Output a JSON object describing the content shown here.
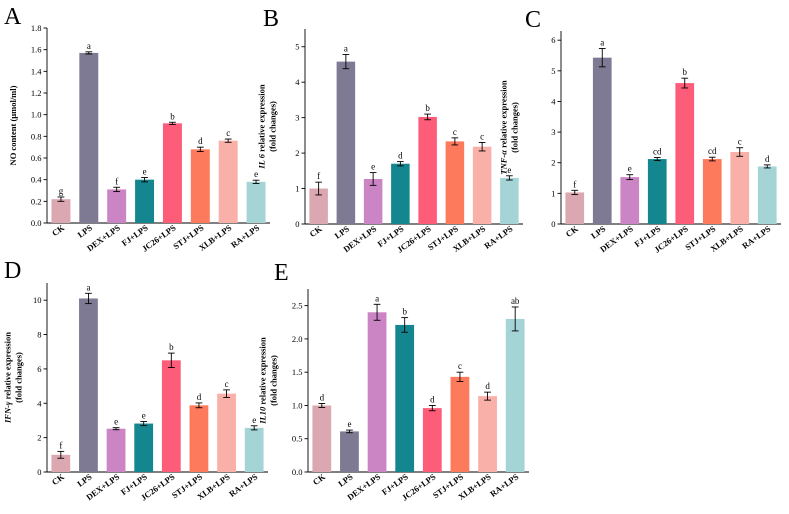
{
  "colors": [
    "#dba8b1",
    "#7e7a93",
    "#cc85c4",
    "#13868f",
    "#fd5d79",
    "#fe7a5d",
    "#f9b0a8",
    "#a5d4d7"
  ],
  "chart_data": [
    {
      "id": "A",
      "type": "bar",
      "letter": "A",
      "categories": [
        "CK",
        "LPS",
        "DEX+LPS",
        "FJ+LPS",
        "JC26+LPS",
        "STJ+LPS",
        "XLB+LPS",
        "RA+LPS"
      ],
      "values": [
        0.22,
        1.57,
        0.31,
        0.4,
        0.92,
        0.68,
        0.76,
        0.38
      ],
      "errors": [
        0.02,
        0.01,
        0.02,
        0.02,
        0.01,
        0.02,
        0.015,
        0.015
      ],
      "sig": [
        "g",
        "a",
        "f",
        "e",
        "b",
        "d",
        "c",
        "e"
      ],
      "ylabel_lines": [
        "NO content (μmol/ml)"
      ],
      "ylabel_italic": "",
      "ylim": [
        0,
        1.8
      ],
      "yticks": [
        "0.0",
        "0.2",
        "0.4",
        "0.6",
        "0.8",
        "1.0",
        "1.2",
        "1.4",
        "1.6",
        "1.8"
      ]
    },
    {
      "id": "B",
      "type": "bar",
      "letter": "B",
      "categories": [
        "CK",
        "LPS",
        "DEX+LPS",
        "FJ+LPS",
        "JC26+LPS",
        "STJ+LPS",
        "XLB+LPS",
        "RA+LPS"
      ],
      "values": [
        1.0,
        4.58,
        1.27,
        1.7,
        3.02,
        2.33,
        2.18,
        1.3
      ],
      "errors": [
        0.18,
        0.2,
        0.18,
        0.06,
        0.08,
        0.1,
        0.12,
        0.06
      ],
      "sig": [
        "f",
        "a",
        "e",
        "d",
        "b",
        "c",
        "c",
        "e"
      ],
      "ylabel_lines": [
        "IL 6 relative expression",
        "(fold changes)"
      ],
      "ylabel_italic": "IL 6",
      "ylim": [
        0,
        5.5
      ],
      "yticks": [
        "0",
        "1",
        "2",
        "3",
        "4",
        "5"
      ]
    },
    {
      "id": "C",
      "type": "bar",
      "letter": "C",
      "categories": [
        "CK",
        "LPS",
        "DEX+LPS",
        "FJ+LPS",
        "JC26+LPS",
        "STJ+LPS",
        "XLB+LPS",
        "RA+LPS"
      ],
      "values": [
        1.03,
        5.43,
        1.53,
        2.12,
        4.6,
        2.12,
        2.35,
        1.88
      ],
      "errors": [
        0.07,
        0.3,
        0.08,
        0.05,
        0.16,
        0.06,
        0.14,
        0.05
      ],
      "sig": [
        "f",
        "a",
        "e",
        "cd",
        "b",
        "cd",
        "c",
        "d"
      ],
      "ylabel_lines": [
        "TNF-α relative expression",
        "(fold changes)"
      ],
      "ylabel_italic": "TNF-α",
      "ylim": [
        0,
        6.3
      ],
      "yticks": [
        "0",
        "1",
        "2",
        "3",
        "4",
        "5",
        "6"
      ]
    },
    {
      "id": "D",
      "type": "bar",
      "letter": "D",
      "categories": [
        "CK",
        "LPS",
        "DEX+LPS",
        "FJ+LPS",
        "JC26+LPS",
        "STJ+LPS",
        "XLB+LPS",
        "RA+LPS"
      ],
      "values": [
        1.0,
        10.1,
        2.52,
        2.82,
        6.5,
        3.88,
        4.56,
        2.57
      ],
      "errors": [
        0.2,
        0.3,
        0.06,
        0.12,
        0.42,
        0.14,
        0.22,
        0.12
      ],
      "sig": [
        "f",
        "a",
        "e",
        "e",
        "b",
        "d",
        "c",
        "e"
      ],
      "ylabel_lines": [
        "IFN-γ relative expression",
        "(fold changes)"
      ],
      "ylabel_italic": "IFN-γ",
      "ylim": [
        0,
        11
      ],
      "yticks": [
        "0",
        "2",
        "4",
        "6",
        "8",
        "10"
      ]
    },
    {
      "id": "E",
      "type": "bar",
      "letter": "E",
      "categories": [
        "CK",
        "LPS",
        "DEX+LPS",
        "FJ+LPS",
        "JC26+LPS",
        "STJ+LPS",
        "XLB+LPS",
        "RA+LPS"
      ],
      "values": [
        1.0,
        0.61,
        2.4,
        2.21,
        0.96,
        1.43,
        1.14,
        2.3
      ],
      "errors": [
        0.03,
        0.02,
        0.12,
        0.11,
        0.04,
        0.07,
        0.06,
        0.18
      ],
      "sig": [
        "d",
        "e",
        "a",
        "b",
        "d",
        "c",
        "d",
        "ab"
      ],
      "ylabel_lines": [
        "IL10 relative expression",
        "(fold changes)"
      ],
      "ylabel_italic": "IL10",
      "ylim": [
        0,
        2.75
      ],
      "yticks": [
        "0.0",
        "0.5",
        "1.0",
        "1.5",
        "2.0",
        "2.5"
      ]
    }
  ]
}
